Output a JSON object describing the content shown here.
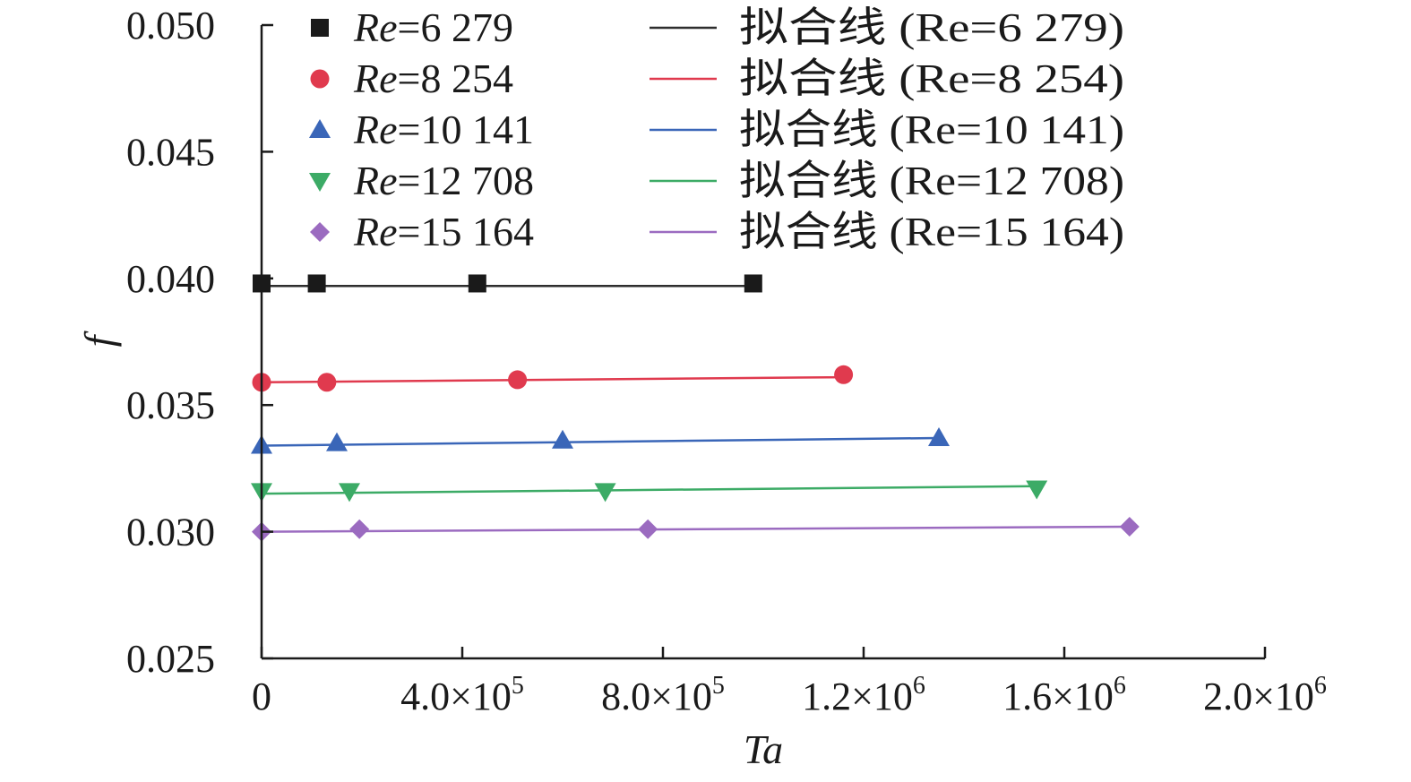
{
  "chart_data": {
    "type": "scatter",
    "title": "",
    "xlabel": "Ta",
    "ylabel": "f",
    "xlim": [
      0,
      2000000
    ],
    "ylim": [
      0.025,
      0.05
    ],
    "grid": false,
    "legend_placement": "top",
    "x_ticks": [
      {
        "value": 0,
        "mantissa": "0",
        "exponent": ""
      },
      {
        "value": 400000,
        "mantissa": "4.0×10",
        "exponent": "5"
      },
      {
        "value": 800000,
        "mantissa": "8.0×10",
        "exponent": "5"
      },
      {
        "value": 1200000,
        "mantissa": "1.2×10",
        "exponent": "6"
      },
      {
        "value": 1600000,
        "mantissa": "1.6×10",
        "exponent": "6"
      },
      {
        "value": 2000000,
        "mantissa": "2.0×10",
        "exponent": "6"
      }
    ],
    "y_ticks": [
      {
        "value": 0.025,
        "label": "0.025"
      },
      {
        "value": 0.03,
        "label": "0.030"
      },
      {
        "value": 0.035,
        "label": "0.035"
      },
      {
        "value": 0.04,
        "label": "0.040"
      },
      {
        "value": 0.045,
        "label": "0.045"
      },
      {
        "value": 0.05,
        "label": "0.050"
      }
    ],
    "series": [
      {
        "name": "Re=6 279",
        "re_prefix": "Re",
        "re_value": "=6 279",
        "marker": "square",
        "marker_color": "#1a1a1a",
        "x": [
          0,
          110000,
          430000,
          980000
        ],
        "y": [
          0.0398,
          0.0398,
          0.0398,
          0.0398
        ],
        "fit_name": "拟合线 (Re=6 279)",
        "fit_color": "#2e2e2e",
        "fit_x": [
          0,
          980000
        ],
        "fit_y": [
          0.0397,
          0.0397
        ]
      },
      {
        "name": "Re=8 254",
        "re_prefix": "Re",
        "re_value": "=8 254",
        "marker": "circle",
        "marker_color": "#e03a4e",
        "x": [
          0,
          130000,
          510000,
          1160000
        ],
        "y": [
          0.0359,
          0.0359,
          0.036,
          0.0362
        ],
        "fit_name": "拟合线 (Re=8 254)",
        "fit_color": "#e03a4e",
        "fit_x": [
          0,
          1160000
        ],
        "fit_y": [
          0.0359,
          0.0361
        ]
      },
      {
        "name": "Re=10 141",
        "re_prefix": "Re",
        "re_value": "=10 141",
        "marker": "triangle-up",
        "marker_color": "#3a66b8",
        "x": [
          0,
          150000,
          600000,
          1350000
        ],
        "y": [
          0.0334,
          0.0335,
          0.0336,
          0.0337
        ],
        "fit_name": "拟合线 (Re=10 141)",
        "fit_color": "#3a66b8",
        "fit_x": [
          0,
          1350000
        ],
        "fit_y": [
          0.0334,
          0.0337
        ]
      },
      {
        "name": "Re=12 708",
        "re_prefix": "Re",
        "re_value": "=12 708",
        "marker": "triangle-down",
        "marker_color": "#3cab66",
        "x": [
          0,
          175000,
          685000,
          1545000
        ],
        "y": [
          0.0316,
          0.0316,
          0.0316,
          0.0317
        ],
        "fit_name": "拟合线 (Re=12 708)",
        "fit_color": "#3cab66",
        "fit_x": [
          0,
          1545000
        ],
        "fit_y": [
          0.0315,
          0.0318
        ]
      },
      {
        "name": "Re=15 164",
        "re_prefix": "Re",
        "re_value": "=15 164",
        "marker": "diamond",
        "marker_color": "#9b6bc0",
        "x": [
          0,
          195000,
          770000,
          1730000
        ],
        "y": [
          0.03,
          0.0301,
          0.0301,
          0.0302
        ],
        "fit_name": "拟合线 (Re=15 164)",
        "fit_color": "#9b6bc0",
        "fit_x": [
          0,
          1730000
        ],
        "fit_y": [
          0.03,
          0.0302
        ]
      }
    ]
  }
}
